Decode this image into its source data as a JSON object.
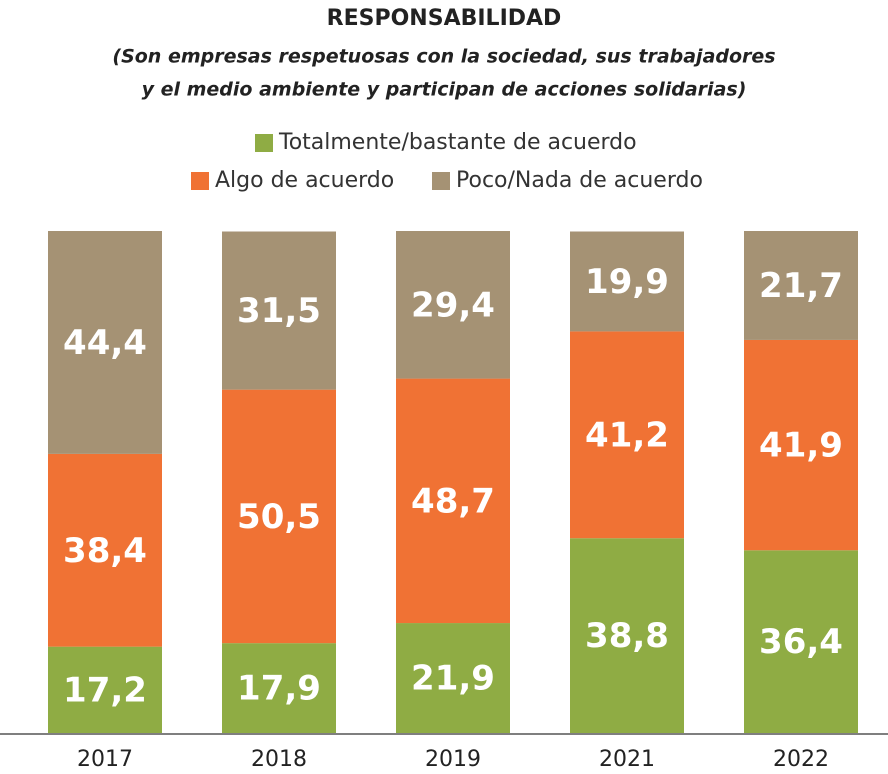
{
  "chart_data": {
    "type": "stacked_bar",
    "title": "RESPONSABILIDAD",
    "subtitle": [
      "(Son empresas respetuosas con la sociedad, sus trabajadores",
      "y el medio ambiente y participan de acciones solidarias)"
    ],
    "categories": [
      "2017",
      "2018",
      "2019",
      "2021",
      "2022"
    ],
    "ylim": [
      0,
      100
    ],
    "series": [
      {
        "name": "Totalmente/bastante de acuerdo",
        "color": "#8fac44",
        "values": [
          17.2,
          17.9,
          21.9,
          38.8,
          36.4
        ],
        "value_labels": [
          "17,2",
          "17,9",
          "21,9",
          "38,8",
          "36,4"
        ]
      },
      {
        "name": "Algo de acuerdo",
        "color": "#f07234",
        "values": [
          38.4,
          50.5,
          48.7,
          41.2,
          41.9
        ],
        "value_labels": [
          "38,4",
          "50,5",
          "48,7",
          "41,2",
          "41,9"
        ]
      },
      {
        "name": "Poco/Nada de acuerdo",
        "color": "#a59274",
        "values": [
          44.4,
          31.5,
          29.4,
          19.9,
          21.7
        ],
        "value_labels": [
          "44,4",
          "31,5",
          "29,4",
          "19,9",
          "21,7"
        ]
      }
    ]
  }
}
